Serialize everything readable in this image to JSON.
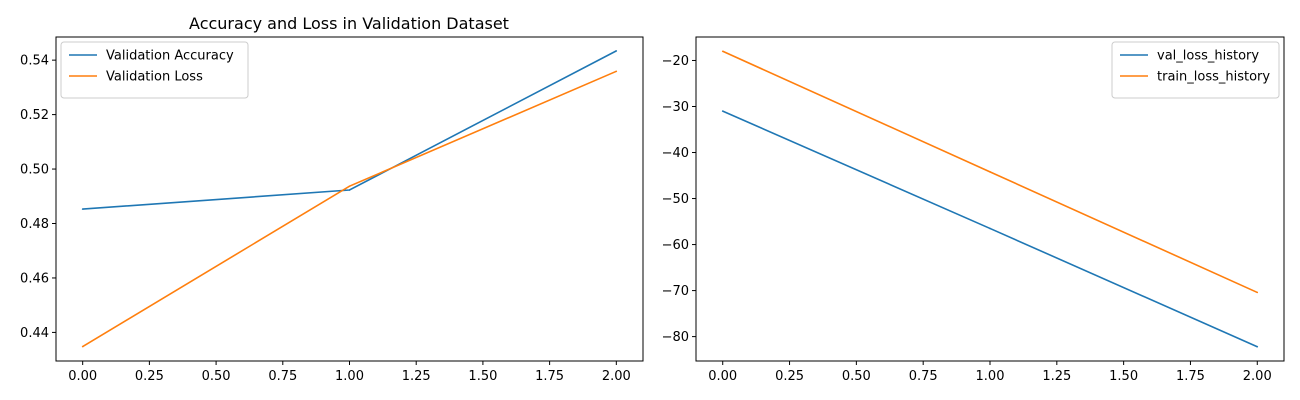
{
  "chart_data": [
    {
      "type": "line",
      "title": "Accuracy and Loss in Validation Dataset",
      "xlabel": "",
      "ylabel": "",
      "xlim": [
        -0.1,
        2.1
      ],
      "ylim": [
        0.4295,
        0.5485
      ],
      "xticks": [
        0,
        0.25,
        0.5,
        0.75,
        1,
        1.25,
        1.5,
        1.75,
        2
      ],
      "xtick_labels": [
        "0.00",
        "0.25",
        "0.50",
        "0.75",
        "1.00",
        "1.25",
        "1.50",
        "1.75",
        "2.00"
      ],
      "yticks": [
        0.44,
        0.46,
        0.48,
        0.5,
        0.52,
        0.54
      ],
      "ytick_labels": [
        "0.44",
        "0.46",
        "0.48",
        "0.50",
        "0.52",
        "0.54"
      ],
      "grid": false,
      "legend_placement": "top-left",
      "series": [
        {
          "name": "Validation Accuracy",
          "color": "#1f77b4",
          "x": [
            0,
            1,
            2
          ],
          "y": [
            0.4853,
            0.4923,
            0.5434
          ]
        },
        {
          "name": "Validation Loss",
          "color": "#ff7f0e",
          "x": [
            0,
            1,
            2
          ],
          "y": [
            0.4348,
            0.4937,
            0.5359
          ]
        }
      ]
    },
    {
      "type": "line",
      "title": "",
      "xlabel": "",
      "ylabel": "",
      "xlim": [
        -0.1,
        2.1
      ],
      "ylim": [
        -85.3,
        -14.9
      ],
      "xticks": [
        0,
        0.25,
        0.5,
        0.75,
        1,
        1.25,
        1.5,
        1.75,
        2
      ],
      "xtick_labels": [
        "0.00",
        "0.25",
        "0.50",
        "0.75",
        "1.00",
        "1.25",
        "1.50",
        "1.75",
        "2.00"
      ],
      "yticks": [
        -80,
        -70,
        -60,
        -50,
        -40,
        -30,
        -20
      ],
      "ytick_labels": [
        "−80",
        "−70",
        "−60",
        "−50",
        "−40",
        "−30",
        "−20"
      ],
      "grid": false,
      "legend_placement": "top-right",
      "series": [
        {
          "name": "val_loss_history",
          "color": "#1f77b4",
          "x": [
            0,
            1,
            2
          ],
          "y": [
            -31,
            -56.5,
            -82.2
          ]
        },
        {
          "name": "train_loss_history",
          "color": "#ff7f0e",
          "x": [
            0,
            1,
            2
          ],
          "y": [
            -18,
            -44.2,
            -70.4
          ]
        }
      ]
    }
  ]
}
